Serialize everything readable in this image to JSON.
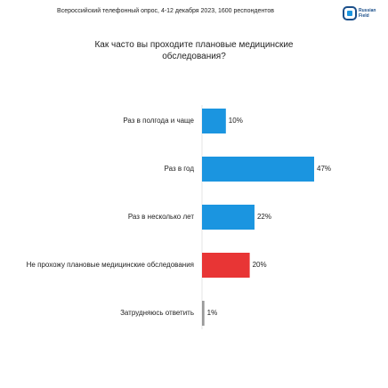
{
  "header": {
    "subtitle": "Всероссийский телефонный опрос, 4-12 декабря 2023, 1600 респондентов",
    "logo_lines": [
      "Russian",
      "Field"
    ]
  },
  "chart_data": {
    "type": "hbar",
    "title": "Как часто вы проходите плановые медицинские обследования?",
    "categories": [
      "Раз в полгода и чаще",
      "Раз в год",
      "Раз в несколько лет",
      "Не прохожу плановые медицинские обследования",
      "Затрудняюсь ответить"
    ],
    "values": [
      10,
      47,
      22,
      20,
      1
    ],
    "value_labels": [
      "10%",
      "47%",
      "22%",
      "20%",
      "1%"
    ],
    "colors": [
      "#1b95e0",
      "#1b95e0",
      "#1b95e0",
      "#e83535",
      "#9a9a9a"
    ]
  }
}
